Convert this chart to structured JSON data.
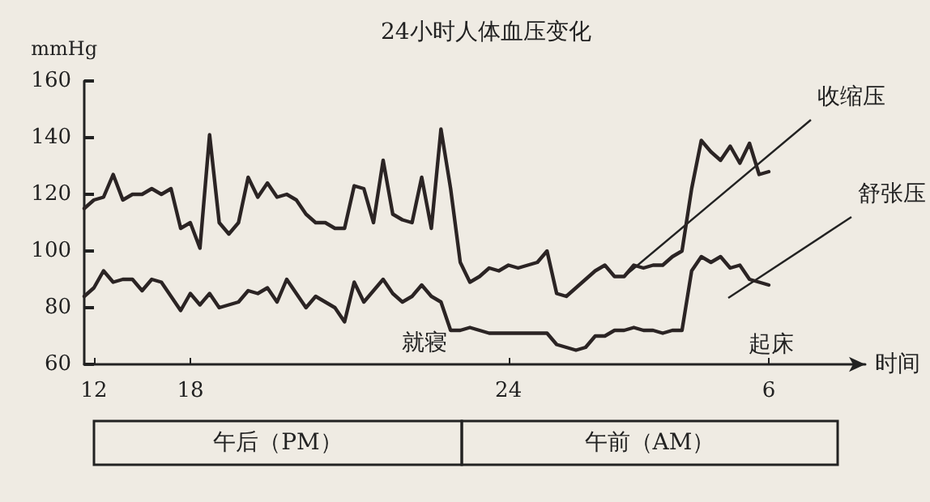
{
  "chart_data": {
    "type": "line",
    "title": "24小时人体血压变化",
    "xlabel": "时间",
    "ylabel": "mmHg",
    "categories": [
      null,
      "12",
      null,
      null,
      null,
      null,
      null,
      null,
      null,
      null,
      null,
      "18",
      null,
      null,
      null,
      null,
      null,
      null,
      null,
      null,
      null,
      null,
      null,
      null,
      null,
      null,
      null,
      null,
      null,
      null,
      null,
      null,
      null,
      null,
      null,
      null,
      null,
      null,
      null,
      null,
      null,
      null,
      null,
      null,
      "24",
      null,
      null,
      null,
      null,
      null,
      null,
      null,
      null,
      null,
      null,
      null,
      null,
      null,
      null,
      null,
      null,
      null,
      null,
      null,
      null,
      null,
      null,
      null,
      null,
      null,
      null,
      "6",
      null,
      null,
      null,
      null,
      null,
      null,
      null,
      null,
      null,
      null
    ],
    "series": [
      {
        "name": "收缩压",
        "color": "#2b2424",
        "values": [
          115,
          118,
          119,
          127,
          118,
          120,
          120,
          122,
          120,
          122,
          108,
          110,
          101,
          141,
          110,
          106,
          110,
          126,
          119,
          124,
          119,
          120,
          118,
          113,
          110,
          110,
          108,
          108,
          123,
          122,
          110,
          132,
          113,
          111,
          110,
          126,
          108,
          143,
          122,
          96,
          89,
          91,
          94,
          93,
          95,
          94,
          95,
          96,
          100,
          85,
          84,
          87,
          90,
          93,
          95,
          91,
          91,
          95,
          94,
          95,
          95,
          98,
          100,
          122,
          139,
          135,
          132,
          137,
          131,
          138,
          127,
          128,
          null,
          null,
          null,
          null,
          null,
          null,
          null,
          null,
          null,
          null
        ]
      },
      {
        "name": "舒张压",
        "color": "#2b2424",
        "values": [
          84,
          87,
          93,
          89,
          90,
          90,
          86,
          90,
          89,
          84,
          79,
          85,
          81,
          85,
          80,
          81,
          82,
          86,
          85,
          87,
          82,
          90,
          85,
          80,
          84,
          82,
          80,
          75,
          89,
          82,
          86,
          90,
          85,
          82,
          84,
          88,
          84,
          82,
          72,
          72,
          73,
          72,
          71,
          71,
          71,
          71,
          71,
          71,
          71,
          67,
          66,
          65,
          66,
          70,
          70,
          72,
          72,
          73,
          72,
          72,
          71,
          72,
          72,
          93,
          98,
          96,
          98,
          94,
          95,
          90,
          89,
          88,
          null,
          null,
          null,
          null,
          null,
          null,
          null,
          null,
          null,
          null
        ]
      }
    ],
    "ylim": [
      60,
      160
    ],
    "yticks": [
      60,
      80,
      100,
      120,
      140,
      160
    ],
    "grid": false,
    "marker": "none",
    "line_style": "solid",
    "annotations": [
      "就寝",
      "起床",
      "午后（PM）",
      "午前（AM）"
    ]
  }
}
